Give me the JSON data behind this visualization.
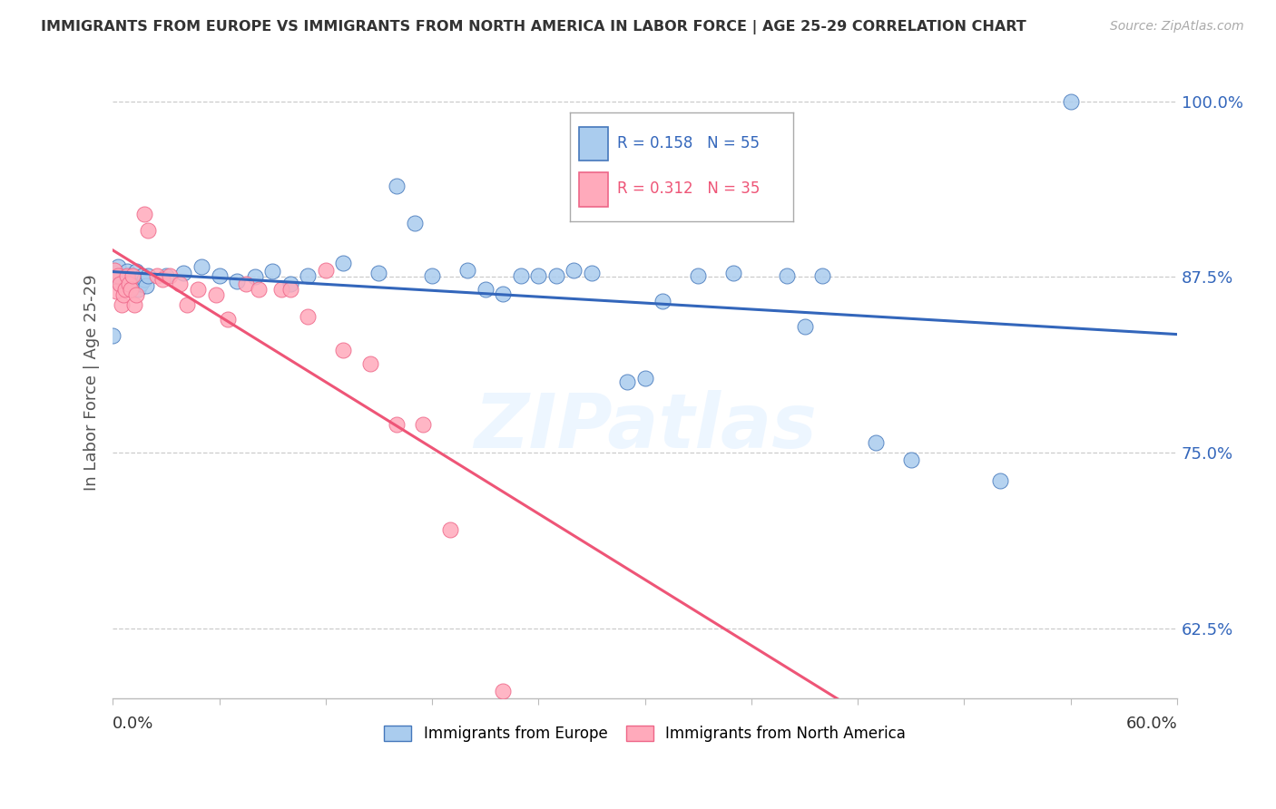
{
  "title": "IMMIGRANTS FROM EUROPE VS IMMIGRANTS FROM NORTH AMERICA IN LABOR FORCE | AGE 25-29 CORRELATION CHART",
  "source": "Source: ZipAtlas.com",
  "ylabel": "In Labor Force | Age 25-29",
  "legend_blue_r": "R = 0.158",
  "legend_blue_n": "N = 55",
  "legend_pink_r": "R = 0.312",
  "legend_pink_n": "N = 35",
  "legend_label_blue": "Immigrants from Europe",
  "legend_label_pink": "Immigrants from North America",
  "blue_fill": "#AACCEE",
  "pink_fill": "#FFAABB",
  "blue_edge": "#4477BB",
  "pink_edge": "#EE6688",
  "blue_line": "#3366BB",
  "pink_line": "#EE5577",
  "watermark": "ZIPatlas",
  "xmin": 0.0,
  "xmax": 0.6,
  "ymin": 0.575,
  "ymax": 1.025,
  "yticks": [
    1.0,
    0.875,
    0.75,
    0.625
  ],
  "ytick_labels": [
    "100.0%",
    "87.5%",
    "75.0%",
    "62.5%"
  ],
  "blue_x": [
    0.001,
    0.002,
    0.003,
    0.004,
    0.005,
    0.006,
    0.007,
    0.008,
    0.009,
    0.01,
    0.011,
    0.012,
    0.013,
    0.014,
    0.015,
    0.016,
    0.017,
    0.018,
    0.019,
    0.02,
    0.0,
    0.03,
    0.04,
    0.05,
    0.06,
    0.07,
    0.08,
    0.09,
    0.1,
    0.11,
    0.13,
    0.15,
    0.16,
    0.17,
    0.18,
    0.2,
    0.21,
    0.22,
    0.23,
    0.24,
    0.25,
    0.26,
    0.27,
    0.29,
    0.3,
    0.31,
    0.33,
    0.35,
    0.38,
    0.39,
    0.4,
    0.43,
    0.45,
    0.5,
    0.54
  ],
  "blue_y": [
    0.878,
    0.875,
    0.882,
    0.87,
    0.876,
    0.872,
    0.875,
    0.879,
    0.871,
    0.876,
    0.868,
    0.874,
    0.879,
    0.866,
    0.873,
    0.87,
    0.876,
    0.873,
    0.869,
    0.876,
    0.833,
    0.876,
    0.878,
    0.882,
    0.876,
    0.872,
    0.875,
    0.879,
    0.87,
    0.876,
    0.885,
    0.878,
    0.94,
    0.913,
    0.876,
    0.88,
    0.866,
    0.863,
    0.876,
    0.876,
    0.876,
    0.88,
    0.878,
    0.8,
    0.803,
    0.858,
    0.876,
    0.878,
    0.876,
    0.84,
    0.876,
    0.757,
    0.745,
    0.73,
    1.0
  ],
  "pink_x": [
    0.001,
    0.002,
    0.003,
    0.004,
    0.005,
    0.006,
    0.007,
    0.008,
    0.009,
    0.01,
    0.011,
    0.012,
    0.013,
    0.018,
    0.02,
    0.025,
    0.028,
    0.032,
    0.038,
    0.042,
    0.048,
    0.058,
    0.065,
    0.075,
    0.082,
    0.095,
    0.1,
    0.11,
    0.12,
    0.13,
    0.145,
    0.16,
    0.175,
    0.19,
    0.22
  ],
  "pink_y": [
    0.88,
    0.865,
    0.876,
    0.87,
    0.855,
    0.862,
    0.866,
    0.876,
    0.87,
    0.866,
    0.876,
    0.855,
    0.862,
    0.92,
    0.908,
    0.876,
    0.873,
    0.876,
    0.87,
    0.855,
    0.866,
    0.862,
    0.845,
    0.87,
    0.866,
    0.866,
    0.866,
    0.847,
    0.88,
    0.823,
    0.813,
    0.77,
    0.77,
    0.695,
    0.58
  ]
}
